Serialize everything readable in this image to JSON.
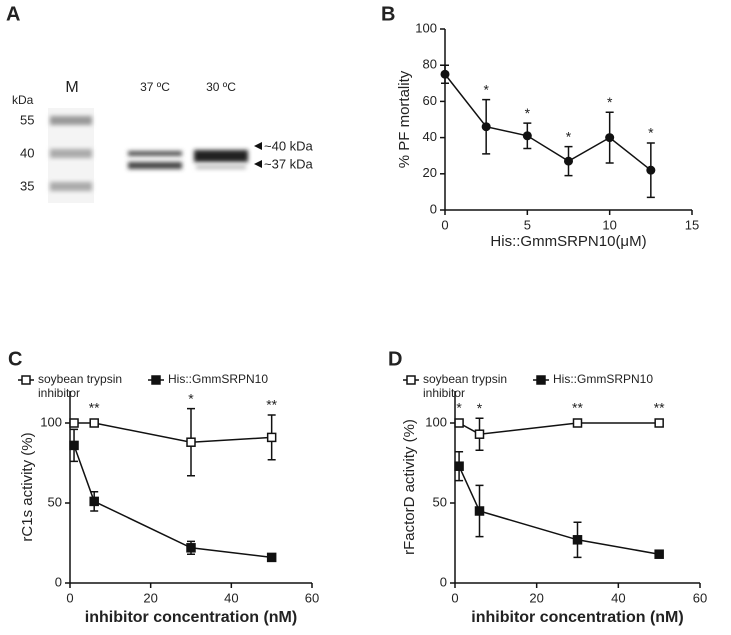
{
  "gel": {
    "panel": "A",
    "marker_lane": "M",
    "unit": "kDa",
    "ladder": [
      "55",
      "40",
      "35"
    ],
    "lanes": [
      "37 ºC",
      "30 ºC"
    ],
    "band_labels": [
      "~40 kDa",
      "~37 kDa"
    ]
  },
  "chart_data": [
    {
      "type": "line",
      "panel": "B",
      "xlabel": "His::GmmSRPN10(μM)",
      "ylabel": "% PF mortality",
      "x": [
        0,
        2.5,
        5,
        7.5,
        10,
        12.5
      ],
      "series": [
        {
          "color": "#111",
          "marker": "circle",
          "values": [
            75,
            46,
            41,
            27,
            40,
            22
          ],
          "errors": [
            5,
            15,
            7,
            8,
            14,
            15
          ]
        }
      ],
      "significance": [
        null,
        "*",
        "*",
        "*",
        "*",
        "*"
      ],
      "xlim": [
        0,
        15
      ],
      "xticks": [
        0,
        5,
        10,
        15
      ],
      "ylim": [
        0,
        100
      ],
      "yticks": [
        0,
        20,
        40,
        60,
        80,
        100
      ]
    },
    {
      "type": "line",
      "panel": "C",
      "xlabel": "inhibitor concentration (nM)",
      "ylabel": "rC1s activity (%)",
      "x": [
        1,
        6,
        30,
        50
      ],
      "series": [
        {
          "name": "soybean trypsin inhibitor",
          "color": "#111",
          "marker": "open-square",
          "values": [
            100,
            100,
            88,
            91
          ],
          "errors": [
            0,
            1,
            21,
            14
          ]
        },
        {
          "name": "His::GmmSRPN10",
          "color": "#111",
          "marker": "square",
          "values": [
            86,
            51,
            22,
            16
          ],
          "errors": [
            10,
            6,
            4,
            1
          ]
        }
      ],
      "significance": [
        null,
        "**",
        "*",
        "**"
      ],
      "xlim": [
        0,
        60
      ],
      "xticks": [
        0,
        20,
        40,
        60
      ],
      "ylim": [
        0,
        120
      ],
      "yticks": [
        0,
        50,
        100
      ]
    },
    {
      "type": "line",
      "panel": "D",
      "xlabel": "inhibitor concentration (nM)",
      "ylabel": "rFactorD activity (%)",
      "x": [
        1,
        6,
        30,
        50
      ],
      "series": [
        {
          "name": "soybean trypsin inhibitor",
          "color": "#111",
          "marker": "open-square",
          "values": [
            100,
            93,
            100,
            100
          ],
          "errors": [
            0,
            10,
            2,
            1
          ]
        },
        {
          "name": "His::GmmSRPN10",
          "color": "#111",
          "marker": "square",
          "values": [
            73,
            45,
            27,
            18
          ],
          "errors": [
            9,
            16,
            11,
            1
          ]
        }
      ],
      "significance": [
        "*",
        "*",
        "**",
        "**"
      ],
      "xlim": [
        0,
        60
      ],
      "xticks": [
        0,
        20,
        40,
        60
      ],
      "ylim": [
        0,
        120
      ],
      "yticks": [
        0,
        50,
        100
      ]
    }
  ]
}
